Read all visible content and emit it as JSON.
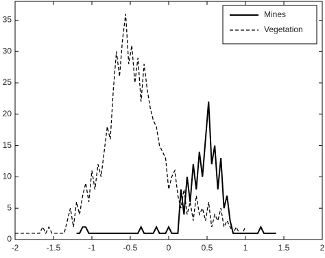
{
  "chart_data": {
    "type": "line",
    "x": [
      -2,
      -1.96,
      -1.92,
      -1.88,
      -1.84,
      -1.8,
      -1.76,
      -1.72,
      -1.68,
      -1.64,
      -1.6,
      -1.56,
      -1.52,
      -1.48,
      -1.44,
      -1.4,
      -1.36,
      -1.32,
      -1.28,
      -1.24,
      -1.2,
      -1.16,
      -1.12,
      -1.08,
      -1.04,
      -1,
      -0.96,
      -0.92,
      -0.88,
      -0.84,
      -0.8,
      -0.76,
      -0.72,
      -0.68,
      -0.64,
      -0.6,
      -0.56,
      -0.52,
      -0.48,
      -0.44,
      -0.4,
      -0.36,
      -0.32,
      -0.28,
      -0.24,
      -0.2,
      -0.16,
      -0.12,
      -0.08,
      -0.04,
      0,
      0.04,
      0.08,
      0.12,
      0.16,
      0.2,
      0.24,
      0.28,
      0.32,
      0.36,
      0.4,
      0.44,
      0.48,
      0.52,
      0.56,
      0.6,
      0.64,
      0.68,
      0.72,
      0.76,
      0.8,
      0.84,
      0.88,
      0.92,
      0.96,
      1,
      1.04,
      1.08,
      1.12,
      1.16,
      1.2,
      1.24,
      1.28,
      1.32,
      1.36,
      1.4
    ],
    "series": [
      {
        "name": "Mines",
        "color": "#000000",
        "style": "solid",
        "values": [
          null,
          null,
          null,
          null,
          null,
          null,
          null,
          null,
          null,
          null,
          null,
          null,
          null,
          null,
          null,
          null,
          null,
          null,
          null,
          null,
          1,
          1,
          2,
          2,
          1,
          1,
          1,
          1,
          1,
          1,
          1,
          1,
          1,
          1,
          1,
          1,
          1,
          1,
          1,
          1,
          1,
          2,
          1,
          1,
          1,
          1,
          2,
          1,
          1,
          1,
          2,
          1,
          1,
          1,
          8,
          4,
          10,
          6,
          12,
          8,
          14,
          10,
          16,
          22,
          12,
          15,
          8,
          13,
          5,
          7,
          3,
          1,
          1,
          1,
          1,
          1,
          1,
          1,
          1,
          1,
          2,
          1,
          1,
          1,
          1,
          1
        ]
      },
      {
        "name": "Vegetation",
        "color": "#000000",
        "style": "dashed",
        "values": [
          1,
          1,
          1,
          1,
          1,
          1,
          1,
          1,
          1,
          2,
          1,
          2,
          1,
          1,
          1,
          1,
          1,
          3,
          5,
          2,
          6,
          4,
          7,
          9,
          6,
          11,
          8,
          12,
          10,
          14,
          18,
          16,
          24,
          30,
          26,
          32,
          36,
          28,
          31,
          25,
          29,
          22,
          28,
          24,
          21,
          19,
          18,
          15,
          14,
          13,
          8,
          10,
          11,
          7,
          5,
          8,
          4,
          6,
          3,
          7,
          4,
          5,
          3,
          6,
          2,
          4,
          3,
          5,
          2,
          3,
          2,
          1,
          2,
          1,
          1,
          2,
          null,
          null,
          null,
          null,
          null,
          null,
          null,
          null,
          null,
          null
        ]
      }
    ],
    "xlim": [
      -2,
      2
    ],
    "xticks": [
      -2,
      -1.5,
      -1,
      -0.5,
      0,
      0.5,
      1,
      1.5,
      2
    ],
    "ylim": [
      0,
      38
    ],
    "yticks": [
      0,
      5,
      10,
      15,
      20,
      25,
      30,
      35
    ],
    "legend": "top-right"
  }
}
